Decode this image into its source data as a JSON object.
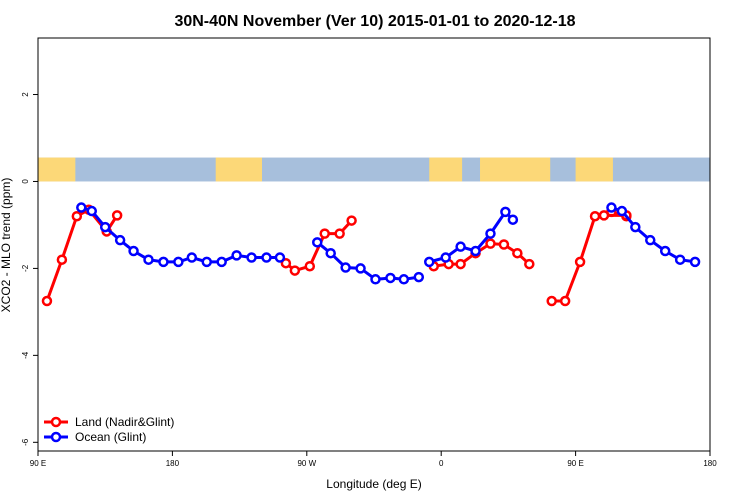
{
  "chart_data": {
    "type": "line",
    "title": "30N-40N November (Ver 10)   2015-01-01 to 2020-12-18",
    "xlabel": "Longitude (deg E)",
    "ylabel": "XCO2 - MLO trend (ppm)",
    "xlim": [
      90,
      540
    ],
    "ylim": [
      -6.2,
      3.3
    ],
    "x_ticks": [
      {
        "value": 90,
        "label": "90 E"
      },
      {
        "value": 180,
        "label": "180"
      },
      {
        "value": 270,
        "label": "90 W"
      },
      {
        "value": 360,
        "label": "0"
      },
      {
        "value": 450,
        "label": "90 E"
      },
      {
        "value": 540,
        "label": "180"
      }
    ],
    "y_ticks": [
      {
        "value": 2,
        "label": "2"
      },
      {
        "value": 0,
        "label": "0"
      },
      {
        "value": -2,
        "label": "-2"
      },
      {
        "value": -4,
        "label": "-4"
      },
      {
        "value": -6,
        "label": "-6"
      }
    ],
    "map_strip": {
      "y_range": [
        0,
        0.55
      ],
      "ocean_color": "#a7bfdc",
      "land_color": "#fcd878"
    },
    "series": [
      {
        "name": "Land (Nadir&Glint)",
        "color": "#ff0000",
        "segments": [
          {
            "x": [
              96,
              106,
              116,
              124,
              136,
              143
            ],
            "y": [
              -2.75,
              -1.8,
              -0.8,
              -0.65,
              -1.15,
              -0.78
            ]
          },
          {
            "x": [
              256,
              262,
              272,
              282,
              292,
              300
            ],
            "y": [
              -1.88,
              -2.05,
              -1.95,
              -1.2,
              -1.2,
              -0.9
            ]
          },
          {
            "x": [
              355,
              365,
              373,
              383,
              393,
              402,
              411,
              419
            ],
            "y": [
              -1.95,
              -1.9,
              -1.9,
              -1.65,
              -1.43,
              -1.45,
              -1.65,
              -1.9
            ]
          },
          {
            "x": [
              434,
              443,
              453,
              463,
              474,
              484
            ],
            "y": [
              -2.75,
              -2.75,
              -1.85,
              -0.8,
              -0.7,
              -0.8
            ]
          },
          {
            "x": [
              469,
              484
            ],
            "y": [
              -0.78,
              -0.78
            ]
          }
        ]
      },
      {
        "name": "Ocean (Glint)",
        "color": "#0000ff",
        "segments": [
          {
            "x": [
              119,
              126,
              135,
              145,
              154,
              164,
              174,
              184,
              193,
              203,
              213,
              223,
              233,
              243,
              252
            ],
            "y": [
              -0.6,
              -0.68,
              -1.05,
              -1.35,
              -1.6,
              -1.8,
              -1.85,
              -1.85,
              -1.75,
              -1.85,
              -1.85,
              -1.7,
              -1.75,
              -1.75,
              -1.75
            ]
          },
          {
            "x": [
              277,
              286,
              296,
              306,
              316,
              326,
              335,
              345
            ],
            "y": [
              -1.4,
              -1.65,
              -1.98,
              -2.0,
              -2.25,
              -2.22,
              -2.25,
              -2.2
            ]
          },
          {
            "x": [
              352,
              363,
              373,
              383,
              393,
              403,
              408
            ],
            "y": [
              -1.85,
              -1.75,
              -1.5,
              -1.6,
              -1.2,
              -0.7,
              -0.88
            ]
          },
          {
            "x": [
              474,
              481,
              490,
              500,
              510,
              520,
              530
            ],
            "y": [
              -0.6,
              -0.68,
              -1.05,
              -1.35,
              -1.6,
              -1.8,
              -1.85
            ]
          }
        ]
      }
    ],
    "legend_position": "bottom-left"
  }
}
